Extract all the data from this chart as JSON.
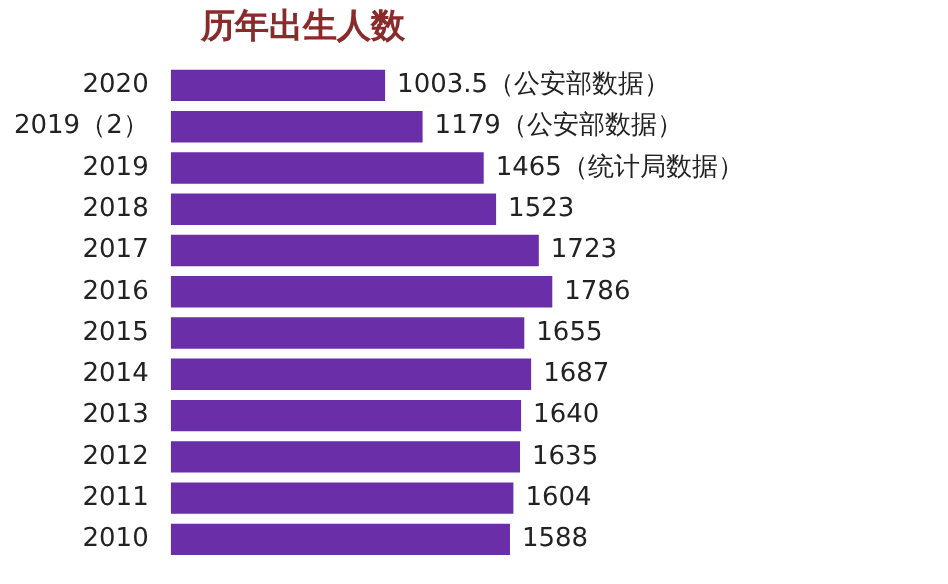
{
  "chart_data": {
    "type": "bar",
    "orientation": "horizontal",
    "title": "历年出生人数",
    "categories": [
      "2020",
      "2019（2）",
      "2019",
      "2018",
      "2017",
      "2016",
      "2015",
      "2014",
      "2013",
      "2012",
      "2011",
      "2010"
    ],
    "values": [
      1003.5,
      1179,
      1465,
      1523,
      1723,
      1786,
      1655,
      1687,
      1640,
      1635,
      1604,
      1588
    ],
    "value_labels": [
      "1003.5（公安部数据）",
      "1179（公安部数据）",
      "1465（统计局数据）",
      "1523",
      "1723",
      "1786",
      "1655",
      "1687",
      "1640",
      "1635",
      "1604",
      "1588"
    ],
    "color": "#6a2ea8",
    "tick_labels": "y",
    "grid": false,
    "legend": false
  }
}
